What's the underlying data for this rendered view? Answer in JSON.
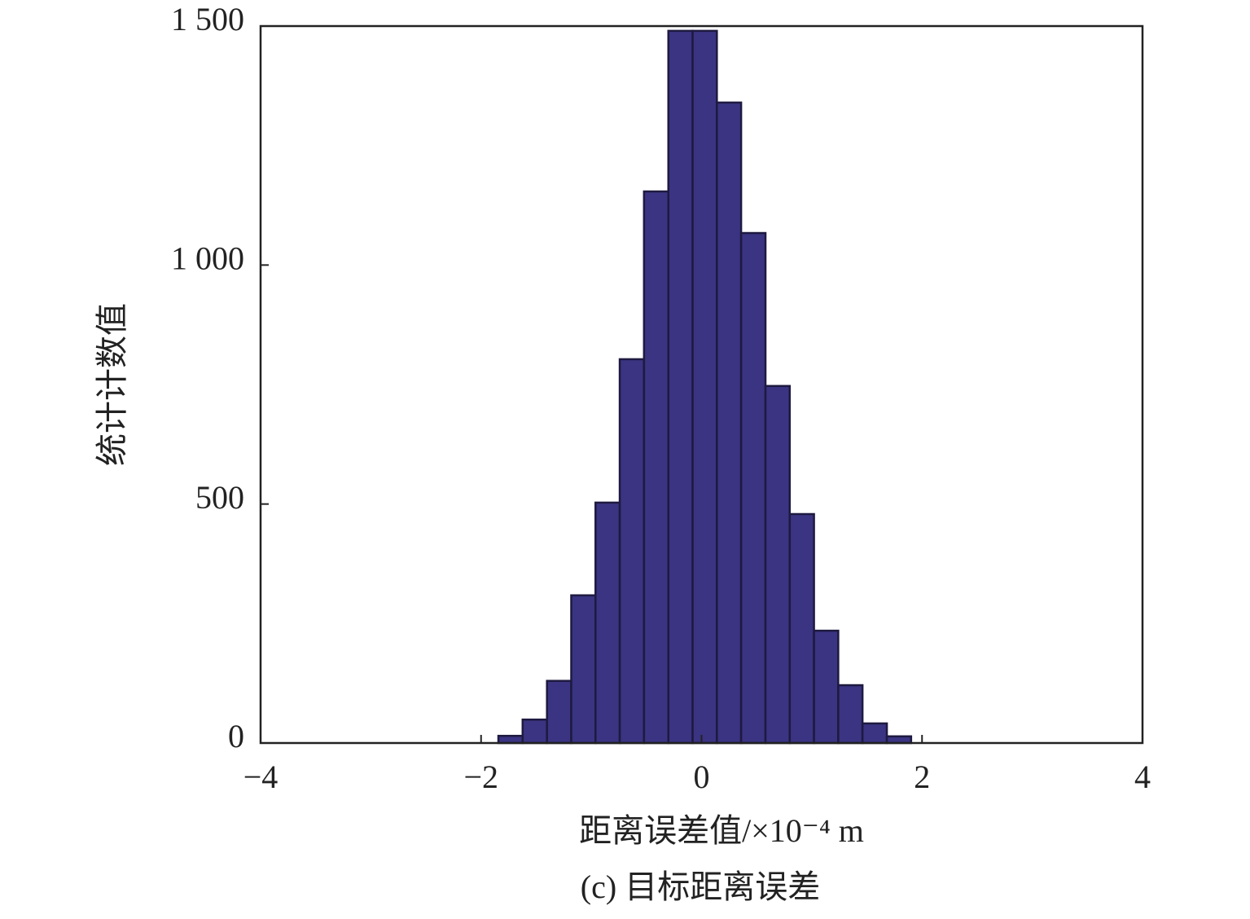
{
  "chart_data": {
    "type": "histogram",
    "x_label": "距离误差值/×10⁻⁴ m",
    "y_label": "统计计数值",
    "caption": "(c) 目标距离误差",
    "bins": [
      -1.843,
      -1.623,
      -1.402,
      -1.182,
      -0.962,
      -0.742,
      -0.522,
      -0.301,
      -0.081,
      0.139,
      0.359,
      0.58,
      0.8,
      1.02,
      1.24,
      1.46,
      1.681,
      1.901
    ],
    "values": [
      15,
      49,
      130,
      309,
      503,
      803,
      1154,
      1490,
      1490,
      1340,
      1067,
      747,
      479,
      235,
      121,
      41,
      14
    ],
    "color": "#3a3482",
    "xlim": [
      -4,
      4
    ],
    "xticks": [
      {
        "value": -4,
        "label": "−4"
      },
      {
        "value": -2,
        "label": "−2"
      },
      0,
      2,
      4
    ],
    "ylim": [
      0,
      1500
    ],
    "yticks": [
      0,
      500,
      {
        "value": 1000,
        "label": "1 000"
      },
      {
        "value": 1500,
        "label": "1 500"
      }
    ]
  }
}
